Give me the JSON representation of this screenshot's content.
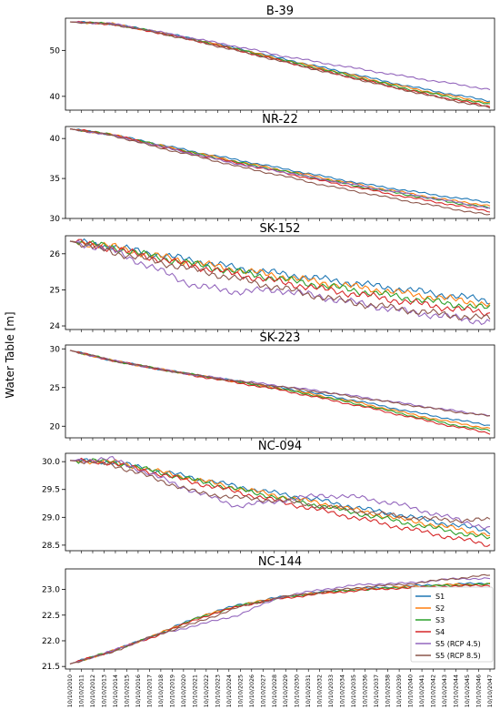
{
  "figure": {
    "ylabel": "Water Table [m]"
  },
  "colors": {
    "S1": "#1f77b4",
    "S2": "#ff7f0e",
    "S3": "#2ca02c",
    "S4": "#d62728",
    "S5 (RCP 4.5)": "#9467bd",
    "S5 (RCP 8.5)": "#8c564b"
  },
  "chart_data": [
    {
      "type": "line",
      "title": "B-39",
      "ylim": [
        37,
        57
      ],
      "yticks": [
        40,
        50
      ],
      "x_start": "10/10/2010",
      "x_end": "10/10/2047",
      "grid": false,
      "series": [
        {
          "name": "S1",
          "values": [
            56.2,
            55.8,
            54.2,
            52.4,
            50.4,
            48.3,
            46.3,
            44.3,
            42.3,
            40.6,
            39.0
          ]
        },
        {
          "name": "S2",
          "values": [
            56.2,
            55.8,
            54.1,
            52.3,
            50.3,
            48.1,
            46.1,
            44.0,
            42.0,
            40.2,
            38.6
          ]
        },
        {
          "name": "S3",
          "values": [
            56.2,
            55.8,
            54.1,
            52.2,
            50.2,
            48.0,
            45.9,
            43.8,
            41.7,
            39.9,
            38.2
          ]
        },
        {
          "name": "S4",
          "values": [
            56.2,
            55.7,
            54.0,
            52.1,
            50.0,
            47.8,
            45.6,
            43.5,
            41.4,
            39.5,
            37.8
          ]
        },
        {
          "name": "S5 (RCP 4.5)",
          "values": [
            56.2,
            55.8,
            54.2,
            52.5,
            50.8,
            48.9,
            47.3,
            45.8,
            44.3,
            42.9,
            41.5
          ]
        },
        {
          "name": "S5 (RCP 8.5)",
          "values": [
            56.2,
            55.7,
            54.0,
            52.0,
            49.9,
            47.7,
            45.5,
            43.4,
            41.3,
            39.3,
            37.5
          ]
        }
      ]
    },
    {
      "type": "line",
      "title": "NR-22",
      "ylim": [
        30,
        41.5
      ],
      "yticks": [
        30,
        35,
        40
      ],
      "x_start": "10/10/2010",
      "x_end": "10/10/2047",
      "grid": false,
      "series": [
        {
          "name": "S1",
          "values": [
            41.2,
            40.5,
            39.4,
            38.3,
            37.3,
            36.3,
            35.3,
            34.3,
            33.5,
            32.7,
            32.0
          ]
        },
        {
          "name": "S2",
          "values": [
            41.2,
            40.5,
            39.3,
            38.2,
            37.1,
            36.1,
            35.1,
            34.1,
            33.2,
            32.3,
            31.6
          ]
        },
        {
          "name": "S3",
          "values": [
            41.2,
            40.5,
            39.3,
            38.1,
            37.0,
            36.0,
            34.9,
            33.9,
            33.0,
            32.1,
            31.3
          ]
        },
        {
          "name": "S4",
          "values": [
            41.2,
            40.5,
            39.2,
            38.0,
            36.9,
            35.8,
            34.7,
            33.7,
            32.7,
            31.8,
            30.9
          ]
        },
        {
          "name": "S5 (RCP 4.5)",
          "values": [
            41.2,
            40.4,
            39.2,
            38.0,
            36.8,
            35.9,
            34.9,
            34.0,
            33.1,
            32.2,
            31.3
          ]
        },
        {
          "name": "S5 (RCP 8.5)",
          "values": [
            41.2,
            40.4,
            39.0,
            37.8,
            36.5,
            35.4,
            34.2,
            33.2,
            32.2,
            31.3,
            30.4
          ]
        }
      ]
    },
    {
      "type": "line",
      "title": "SK-152",
      "ylim": [
        23.9,
        26.5
      ],
      "yticks": [
        24,
        25,
        26
      ],
      "x_start": "10/10/2010",
      "x_end": "10/10/2047",
      "grid": false,
      "series": [
        {
          "name": "S1",
          "values": [
            26.35,
            26.2,
            26.0,
            25.8,
            25.6,
            25.45,
            25.3,
            25.15,
            25.0,
            24.85,
            24.7
          ]
        },
        {
          "name": "S2",
          "values": [
            26.35,
            26.2,
            25.95,
            25.75,
            25.55,
            25.38,
            25.2,
            25.05,
            24.9,
            24.75,
            24.6
          ]
        },
        {
          "name": "S3",
          "values": [
            26.35,
            26.18,
            25.92,
            25.7,
            25.5,
            25.3,
            25.12,
            24.95,
            24.78,
            24.62,
            24.48
          ]
        },
        {
          "name": "S4",
          "values": [
            26.35,
            26.15,
            25.88,
            25.65,
            25.42,
            25.22,
            25.02,
            24.85,
            24.67,
            24.5,
            24.35
          ]
        },
        {
          "name": "S5 (RCP 4.5)",
          "values": [
            26.35,
            26.1,
            25.6,
            25.1,
            24.95,
            25.0,
            24.8,
            24.6,
            24.4,
            24.25,
            24.1
          ]
        },
        {
          "name": "S5 (RCP 8.5)",
          "values": [
            26.35,
            26.05,
            25.8,
            25.55,
            25.3,
            25.05,
            24.8,
            24.6,
            24.45,
            24.3,
            24.2
          ]
        }
      ]
    },
    {
      "type": "line",
      "title": "SK-223",
      "ylim": [
        18.5,
        30.5
      ],
      "yticks": [
        20,
        25,
        30
      ],
      "x_start": "10/10/2010",
      "x_end": "10/10/2047",
      "grid": false,
      "series": [
        {
          "name": "S1",
          "values": [
            29.8,
            28.5,
            27.5,
            26.6,
            25.8,
            25.0,
            24.1,
            23.1,
            22.0,
            21.0,
            20.1
          ]
        },
        {
          "name": "S2",
          "values": [
            29.8,
            28.5,
            27.5,
            26.6,
            25.7,
            24.9,
            23.9,
            22.9,
            21.7,
            20.6,
            19.7
          ]
        },
        {
          "name": "S3",
          "values": [
            29.8,
            28.5,
            27.5,
            26.6,
            25.7,
            24.8,
            23.8,
            22.7,
            21.5,
            20.3,
            19.4
          ]
        },
        {
          "name": "S4",
          "values": [
            29.8,
            28.5,
            27.5,
            26.5,
            25.6,
            24.7,
            23.6,
            22.5,
            21.3,
            20.1,
            19.1
          ]
        },
        {
          "name": "S5 (RCP 4.5)",
          "values": [
            29.8,
            28.5,
            27.5,
            26.6,
            25.9,
            25.2,
            24.5,
            23.7,
            22.9,
            22.1,
            21.4
          ]
        },
        {
          "name": "S5 (RCP 8.5)",
          "values": [
            29.8,
            28.5,
            27.5,
            26.6,
            25.8,
            25.1,
            24.4,
            23.6,
            22.8,
            22.0,
            21.3
          ]
        }
      ]
    },
    {
      "type": "line",
      "title": "NC-094",
      "ylim": [
        28.4,
        30.15
      ],
      "yticks": [
        28.5,
        29.0,
        29.5,
        30.0
      ],
      "x_start": "10/10/2010",
      "x_end": "10/10/2047",
      "grid": false,
      "series": [
        {
          "name": "S1",
          "values": [
            30.02,
            30.0,
            29.85,
            29.7,
            29.55,
            29.42,
            29.3,
            29.15,
            29.02,
            28.88,
            28.75
          ]
        },
        {
          "name": "S2",
          "values": [
            30.02,
            30.0,
            29.84,
            29.68,
            29.52,
            29.38,
            29.25,
            29.1,
            28.95,
            28.82,
            28.68
          ]
        },
        {
          "name": "S3",
          "values": [
            30.02,
            30.0,
            29.83,
            29.66,
            29.5,
            29.35,
            29.2,
            29.05,
            28.9,
            28.76,
            28.62
          ]
        },
        {
          "name": "S4",
          "values": [
            30.02,
            29.98,
            29.8,
            29.62,
            29.45,
            29.28,
            29.12,
            28.96,
            28.8,
            28.65,
            28.5
          ]
        },
        {
          "name": "S5 (RCP 4.5)",
          "values": [
            30.02,
            30.05,
            29.75,
            29.45,
            29.2,
            29.3,
            29.4,
            29.35,
            29.2,
            29.0,
            28.8
          ]
        },
        {
          "name": "S5 (RCP 8.5)",
          "values": [
            30.02,
            29.95,
            29.7,
            29.45,
            29.35,
            29.3,
            29.2,
            29.1,
            29.0,
            28.95,
            28.95
          ]
        }
      ]
    },
    {
      "type": "line",
      "title": "NC-144",
      "ylim": [
        21.45,
        23.4
      ],
      "yticks": [
        21.5,
        22.0,
        22.5,
        23.0
      ],
      "x_start": "10/10/2010",
      "x_end": "10/10/2047",
      "grid": false,
      "legend": "bottom-right",
      "series": [
        {
          "name": "S1",
          "values": [
            21.55,
            21.8,
            22.1,
            22.45,
            22.7,
            22.85,
            22.95,
            23.02,
            23.06,
            23.1,
            23.12
          ]
        },
        {
          "name": "S2",
          "values": [
            21.55,
            21.8,
            22.1,
            22.44,
            22.69,
            22.84,
            22.94,
            23.01,
            23.05,
            23.09,
            23.11
          ]
        },
        {
          "name": "S3",
          "values": [
            21.55,
            21.8,
            22.09,
            22.43,
            22.68,
            22.83,
            22.94,
            23.0,
            23.04,
            23.08,
            23.1
          ]
        },
        {
          "name": "S4",
          "values": [
            21.55,
            21.8,
            22.08,
            22.42,
            22.67,
            22.82,
            22.92,
            22.99,
            23.03,
            23.06,
            23.08
          ]
        },
        {
          "name": "S5 (RCP 4.5)",
          "values": [
            21.55,
            21.8,
            22.1,
            22.3,
            22.5,
            22.85,
            23.0,
            23.1,
            23.12,
            23.2,
            23.22
          ]
        },
        {
          "name": "S5 (RCP 8.5)",
          "values": [
            21.55,
            21.78,
            22.1,
            22.35,
            22.65,
            22.85,
            22.95,
            23.05,
            23.1,
            23.2,
            23.28
          ]
        }
      ]
    }
  ]
}
